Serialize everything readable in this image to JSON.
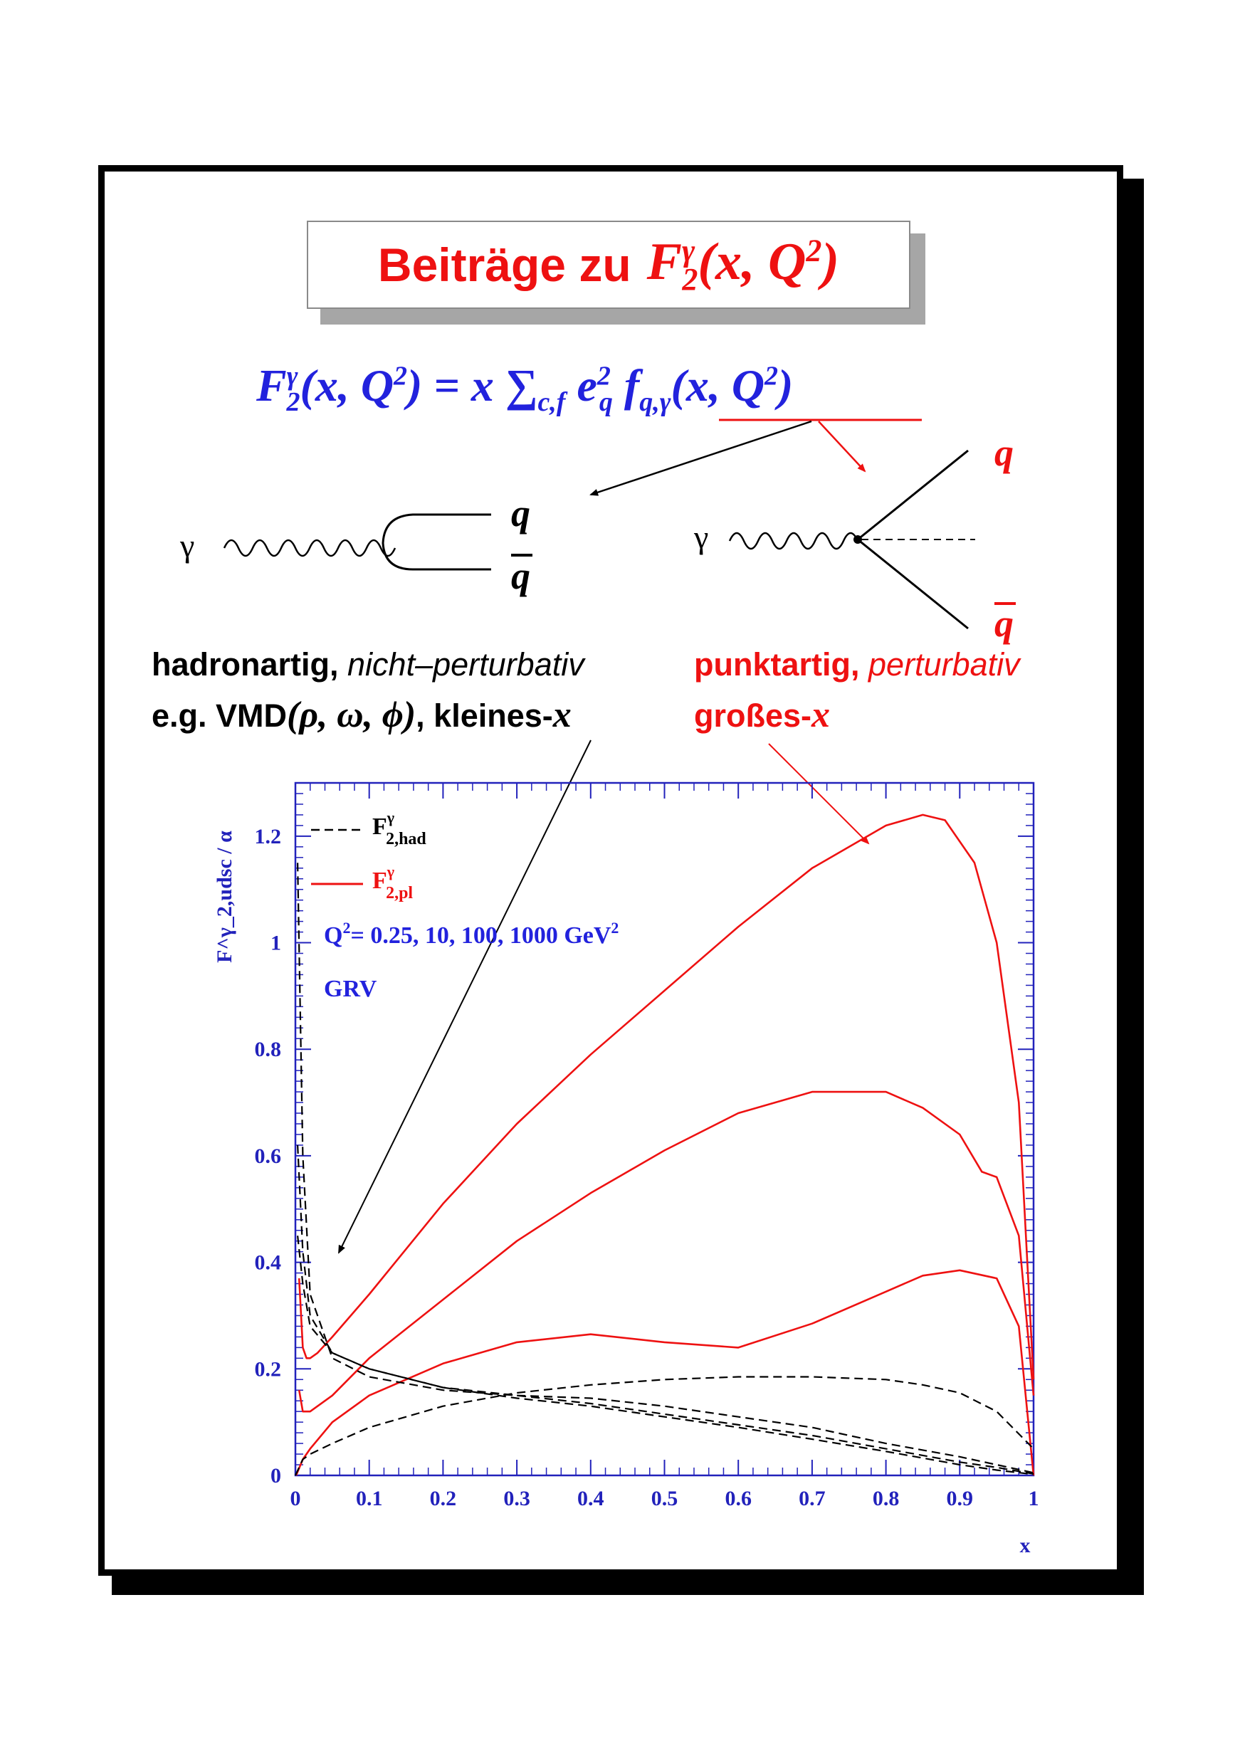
{
  "slide": {
    "title_text": "Beiträge zu",
    "title_math": {
      "base": "F",
      "sub": "2",
      "sup": "γ",
      "args": "(x, Q",
      "args_sup": "2",
      "close": ")"
    },
    "formula": {
      "lhs_base": "F",
      "lhs_sub": "2",
      "lhs_sup": "γ",
      "lhs_args": "(x, Q",
      "lhs_args_sup": "2",
      "lhs_close": ") = x ",
      "sum": "∑",
      "sum_sub": "c,f",
      "e_base": " e",
      "e_sup": "2",
      "e_sub": "q",
      "f_base": " f",
      "f_sub": "q,γ",
      "f_args": "(x, Q",
      "f_args_sup": "2",
      "f_close": ")"
    },
    "feynman": {
      "left_gamma": "γ",
      "left_q": "q",
      "left_qbar": "q",
      "right_gamma": "γ",
      "right_q": "q",
      "right_qbar": "q"
    },
    "left_caption": {
      "line1_bold": "hadronartig,",
      "line1_ital": "nicht–perturbativ",
      "line2_a": "e.g. VMD",
      "line2_math": "(ρ, ω, ϕ)",
      "line2_b": ", kleines-",
      "line2_x": "x"
    },
    "right_caption": {
      "line1_bold": "punktartig,",
      "line1_ital": "perturbativ",
      "line2_a": "großes-",
      "line2_x": "x"
    }
  },
  "colors": {
    "red": "#ee1111",
    "blue": "#2222dd",
    "axis": "#2222bb",
    "black": "#000000"
  },
  "chart_data": {
    "type": "line",
    "ylabel": "F^γ_2,udsc / α",
    "xlabel": "x",
    "xlim": [
      0,
      1
    ],
    "ylim": [
      0,
      1.3
    ],
    "x_ticks": [
      "0",
      "0.1",
      "0.2",
      "0.3",
      "0.4",
      "0.5",
      "0.6",
      "0.7",
      "0.8",
      "0.9",
      "1"
    ],
    "y_ticks": [
      "0",
      "0.2",
      "0.4",
      "0.6",
      "0.8",
      "1",
      "1.2"
    ],
    "legend": [
      {
        "label_base": "F",
        "label_sup": "γ",
        "label_sub": "2,had",
        "style": "dashed",
        "color": "#000000"
      },
      {
        "label_base": "F",
        "label_sup": "γ",
        "label_sub": "2,pl",
        "style": "solid",
        "color": "#ee1111"
      }
    ],
    "annotation_q2": "Q",
    "annotation_q2_sup": "2",
    "annotation_q2_rest": "= 0.25, 10, 100, 1000 GeV",
    "annotation_q2_unit_sup": "2",
    "annotation_set": "GRV",
    "series": [
      {
        "group": "pl",
        "style": "solid",
        "color": "#ee1111",
        "x": [
          0.001,
          0.01,
          0.02,
          0.05,
          0.1,
          0.2,
          0.3,
          0.4,
          0.5,
          0.6,
          0.7,
          0.8,
          0.85,
          0.9,
          0.95,
          0.98,
          1.0
        ],
        "y": [
          0.0,
          0.03,
          0.05,
          0.1,
          0.15,
          0.21,
          0.25,
          0.265,
          0.25,
          0.24,
          0.285,
          0.345,
          0.375,
          0.385,
          0.37,
          0.28,
          0.0
        ]
      },
      {
        "group": "pl",
        "style": "solid",
        "color": "#ee1111",
        "x": [
          0.005,
          0.01,
          0.02,
          0.05,
          0.1,
          0.2,
          0.3,
          0.4,
          0.5,
          0.6,
          0.7,
          0.8,
          0.85,
          0.9,
          0.93,
          0.95,
          0.98,
          1.0
        ],
        "y": [
          0.16,
          0.12,
          0.12,
          0.15,
          0.22,
          0.33,
          0.44,
          0.53,
          0.61,
          0.68,
          0.72,
          0.72,
          0.69,
          0.64,
          0.57,
          0.56,
          0.45,
          0.15
        ]
      },
      {
        "group": "pl",
        "style": "solid",
        "color": "#ee1111",
        "x": [
          0.005,
          0.01,
          0.015,
          0.02,
          0.03,
          0.05,
          0.1,
          0.2,
          0.3,
          0.4,
          0.5,
          0.6,
          0.7,
          0.8,
          0.85,
          0.88,
          0.92,
          0.95,
          0.98,
          1.0
        ],
        "y": [
          0.37,
          0.24,
          0.22,
          0.22,
          0.23,
          0.26,
          0.34,
          0.51,
          0.66,
          0.79,
          0.91,
          1.03,
          1.14,
          1.22,
          1.24,
          1.23,
          1.15,
          1.0,
          0.7,
          0.18
        ]
      },
      {
        "group": "had",
        "style": "dashed",
        "color": "#000000",
        "x": [
          0.0,
          0.01,
          0.02,
          0.05,
          0.1,
          0.2,
          0.3,
          0.4,
          0.5,
          0.6,
          0.7,
          0.8,
          0.85,
          0.9,
          0.95,
          1.0
        ],
        "y": [
          0.0,
          0.03,
          0.04,
          0.06,
          0.09,
          0.13,
          0.155,
          0.17,
          0.18,
          0.185,
          0.185,
          0.18,
          0.17,
          0.155,
          0.12,
          0.05
        ]
      },
      {
        "group": "had",
        "style": "dashed",
        "color": "#000000",
        "x": [
          0.003,
          0.01,
          0.02,
          0.05,
          0.1,
          0.2,
          0.3,
          0.4,
          0.5,
          0.6,
          0.7,
          0.8,
          0.9,
          0.95,
          1.0
        ],
        "y": [
          1.15,
          0.6,
          0.34,
          0.22,
          0.185,
          0.16,
          0.15,
          0.145,
          0.13,
          0.11,
          0.09,
          0.06,
          0.035,
          0.02,
          0.005
        ]
      },
      {
        "group": "had",
        "style": "dashed",
        "color": "#000000",
        "x": [
          0.003,
          0.01,
          0.02,
          0.05,
          0.1,
          0.2,
          0.3,
          0.4,
          0.5,
          0.6,
          0.7,
          0.8,
          0.9,
          0.95,
          1.0
        ],
        "y": [
          0.62,
          0.42,
          0.3,
          0.23,
          0.2,
          0.165,
          0.15,
          0.135,
          0.115,
          0.095,
          0.075,
          0.05,
          0.025,
          0.015,
          0.003
        ]
      },
      {
        "group": "had",
        "style": "dashed",
        "color": "#000000",
        "x": [
          0.003,
          0.01,
          0.02,
          0.05,
          0.1,
          0.2,
          0.3,
          0.4,
          0.5,
          0.6,
          0.7,
          0.8,
          0.9,
          0.95,
          1.0
        ],
        "y": [
          0.45,
          0.36,
          0.28,
          0.23,
          0.2,
          0.165,
          0.145,
          0.13,
          0.11,
          0.09,
          0.068,
          0.045,
          0.02,
          0.01,
          0.002
        ]
      }
    ]
  }
}
